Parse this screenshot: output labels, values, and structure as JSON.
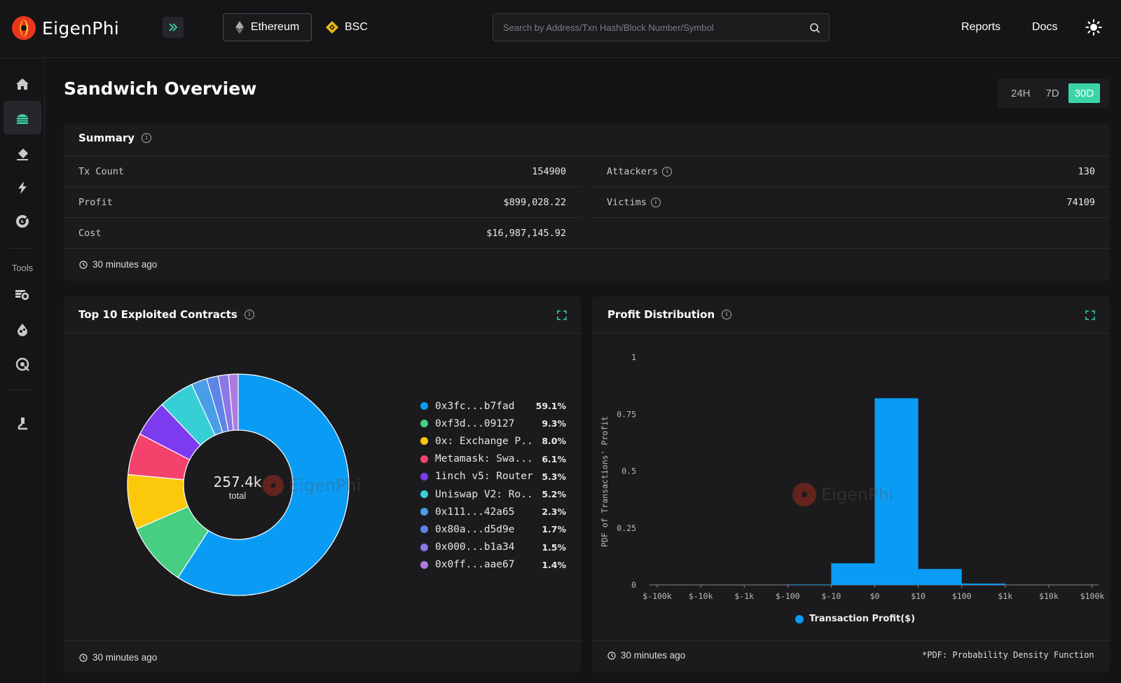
{
  "header": {
    "brand": "EigenPhi",
    "chains": [
      {
        "label": "Ethereum"
      },
      {
        "label": "BSC"
      }
    ],
    "search_placeholder": "Search by Address/Txn Hash/Block Number/Symbol",
    "nav": {
      "reports": "Reports",
      "docs": "Docs"
    }
  },
  "sidebar": {
    "tools_label": "Tools",
    "items": [
      "home-icon",
      "sandwich-icon",
      "eraser-icon",
      "flash-icon",
      "radar-icon"
    ],
    "tools": [
      "coin-stack-icon",
      "drop-icon",
      "scan-icon",
      "microscope-icon"
    ]
  },
  "page": {
    "title": "Sandwich Overview",
    "ranges": [
      "24H",
      "7D",
      "30D"
    ],
    "active_range": "30D"
  },
  "summary": {
    "title": "Summary",
    "left": [
      {
        "label": "Tx Count",
        "value": "154900"
      },
      {
        "label": "Profit",
        "value": "$899,028.22"
      },
      {
        "label": "Cost",
        "value": "$16,987,145.92"
      }
    ],
    "right": [
      {
        "label": "Attackers",
        "value": "130"
      },
      {
        "label": "Victims",
        "value": "74109"
      }
    ],
    "updated": "30 minutes ago"
  },
  "contracts": {
    "title": "Top 10 Exploited Contracts",
    "total": "257.4k",
    "total_label": "total",
    "updated": "30 minutes ago"
  },
  "profit": {
    "title": "Profit Distribution",
    "updated": "30 minutes ago",
    "footnote": "*PDF: Probability Density Function"
  },
  "colors": {
    "accent": "#3bd4a9",
    "bar": "#0a9cf5"
  },
  "chart_data": [
    {
      "type": "pie",
      "title": "Top 10 Exploited Contracts",
      "center_label": "257.4k total",
      "slices": [
        {
          "label": "0x3fc...b7fad",
          "value": 59.1,
          "display": "59.1%",
          "color": "#0a9cf5"
        },
        {
          "label": "0xf3d...09127",
          "value": 9.3,
          "display": "9.3%",
          "color": "#46cf83"
        },
        {
          "label": "0x: Exchange P...",
          "value": 8.0,
          "display": "8.0%",
          "color": "#fcc80c"
        },
        {
          "label": "Metamask: Swa...",
          "value": 6.1,
          "display": "6.1%",
          "color": "#f5426c"
        },
        {
          "label": "1inch v5: Router",
          "value": 5.3,
          "display": "5.3%",
          "color": "#7d3bf0"
        },
        {
          "label": "Uniswap V2: Ro...",
          "value": 5.2,
          "display": "5.2%",
          "color": "#37cfd6"
        },
        {
          "label": "0x111...42a65",
          "value": 2.3,
          "display": "2.3%",
          "color": "#4a9ee8"
        },
        {
          "label": "0x80a...d5d9e",
          "value": 1.7,
          "display": "1.7%",
          "color": "#5d84e6"
        },
        {
          "label": "0x000...b1a34",
          "value": 1.5,
          "display": "1.5%",
          "color": "#8a78e6"
        },
        {
          "label": "0x0ff...aae67",
          "value": 1.4,
          "display": "1.4%",
          "color": "#b07be0"
        }
      ]
    },
    {
      "type": "bar",
      "title": "Profit Distribution",
      "ylabel": "PDF of Transactions' Profit",
      "series_name": "Transaction Profit($)",
      "x_ticks": [
        "$-100k",
        "$-10k",
        "$-1k",
        "$-100",
        "$-10",
        "$0",
        "$10",
        "$100",
        "$1k",
        "$10k",
        "$100k"
      ],
      "y_ticks": [
        0,
        0.25,
        0.5,
        0.75,
        1
      ],
      "ylim": [
        0,
        1
      ],
      "bins": [
        {
          "from": "$-100k",
          "to": "$-10k",
          "value": 0.0
        },
        {
          "from": "$-10k",
          "to": "$-1k",
          "value": 0.0
        },
        {
          "from": "$-1k",
          "to": "$-100",
          "value": 0.0
        },
        {
          "from": "$-100",
          "to": "$-10",
          "value": 0.002
        },
        {
          "from": "$-10",
          "to": "$0",
          "value": 0.095
        },
        {
          "from": "$0",
          "to": "$10",
          "value": 0.82
        },
        {
          "from": "$10",
          "to": "$100",
          "value": 0.07
        },
        {
          "from": "$100",
          "to": "$1k",
          "value": 0.006
        },
        {
          "from": "$1k",
          "to": "$10k",
          "value": 0.0
        },
        {
          "from": "$10k",
          "to": "$100k",
          "value": 0.0
        }
      ]
    }
  ]
}
